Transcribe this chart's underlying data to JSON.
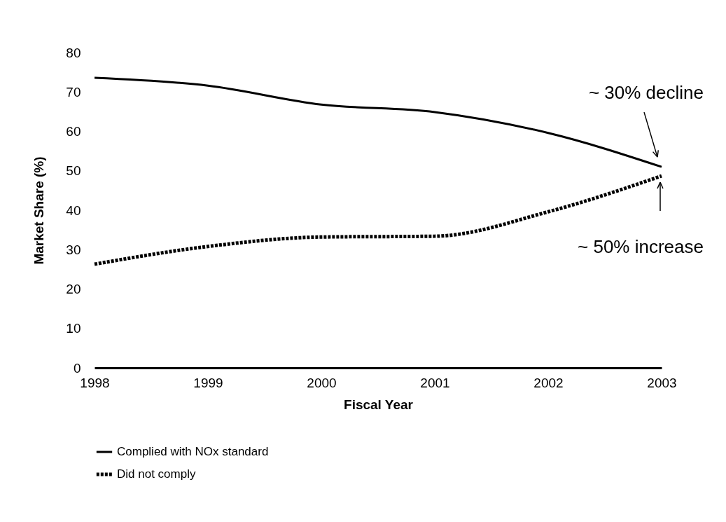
{
  "chart_data": {
    "type": "line",
    "xlabel": "Fiscal Year",
    "ylabel": "Market Share (%)",
    "x": [
      1998,
      1999,
      2000,
      2001,
      2002,
      2003
    ],
    "series": [
      {
        "name": "Complied with NOx standard",
        "color": "#000000",
        "line_style": "solid",
        "values": [
          73.6,
          71.6,
          66.8,
          64.9,
          59.6,
          51
        ]
      },
      {
        "name": "Did not comply",
        "color": "#000000",
        "line_style": "dotted",
        "values": [
          26.3,
          30.8,
          33.2,
          33.4,
          39.6,
          48.7
        ]
      }
    ],
    "annotations": [
      "~ 30% decline",
      "~ 50% increase"
    ],
    "xlim": [
      1998,
      2003
    ],
    "xticks": [
      1998,
      1999,
      2000,
      2001,
      2002,
      2003
    ],
    "ylim": [
      0,
      80
    ],
    "yticks": [
      0,
      10,
      20,
      30,
      40,
      50,
      60,
      70,
      80
    ],
    "grid": false,
    "legend": "bottom",
    "marker": "none"
  }
}
